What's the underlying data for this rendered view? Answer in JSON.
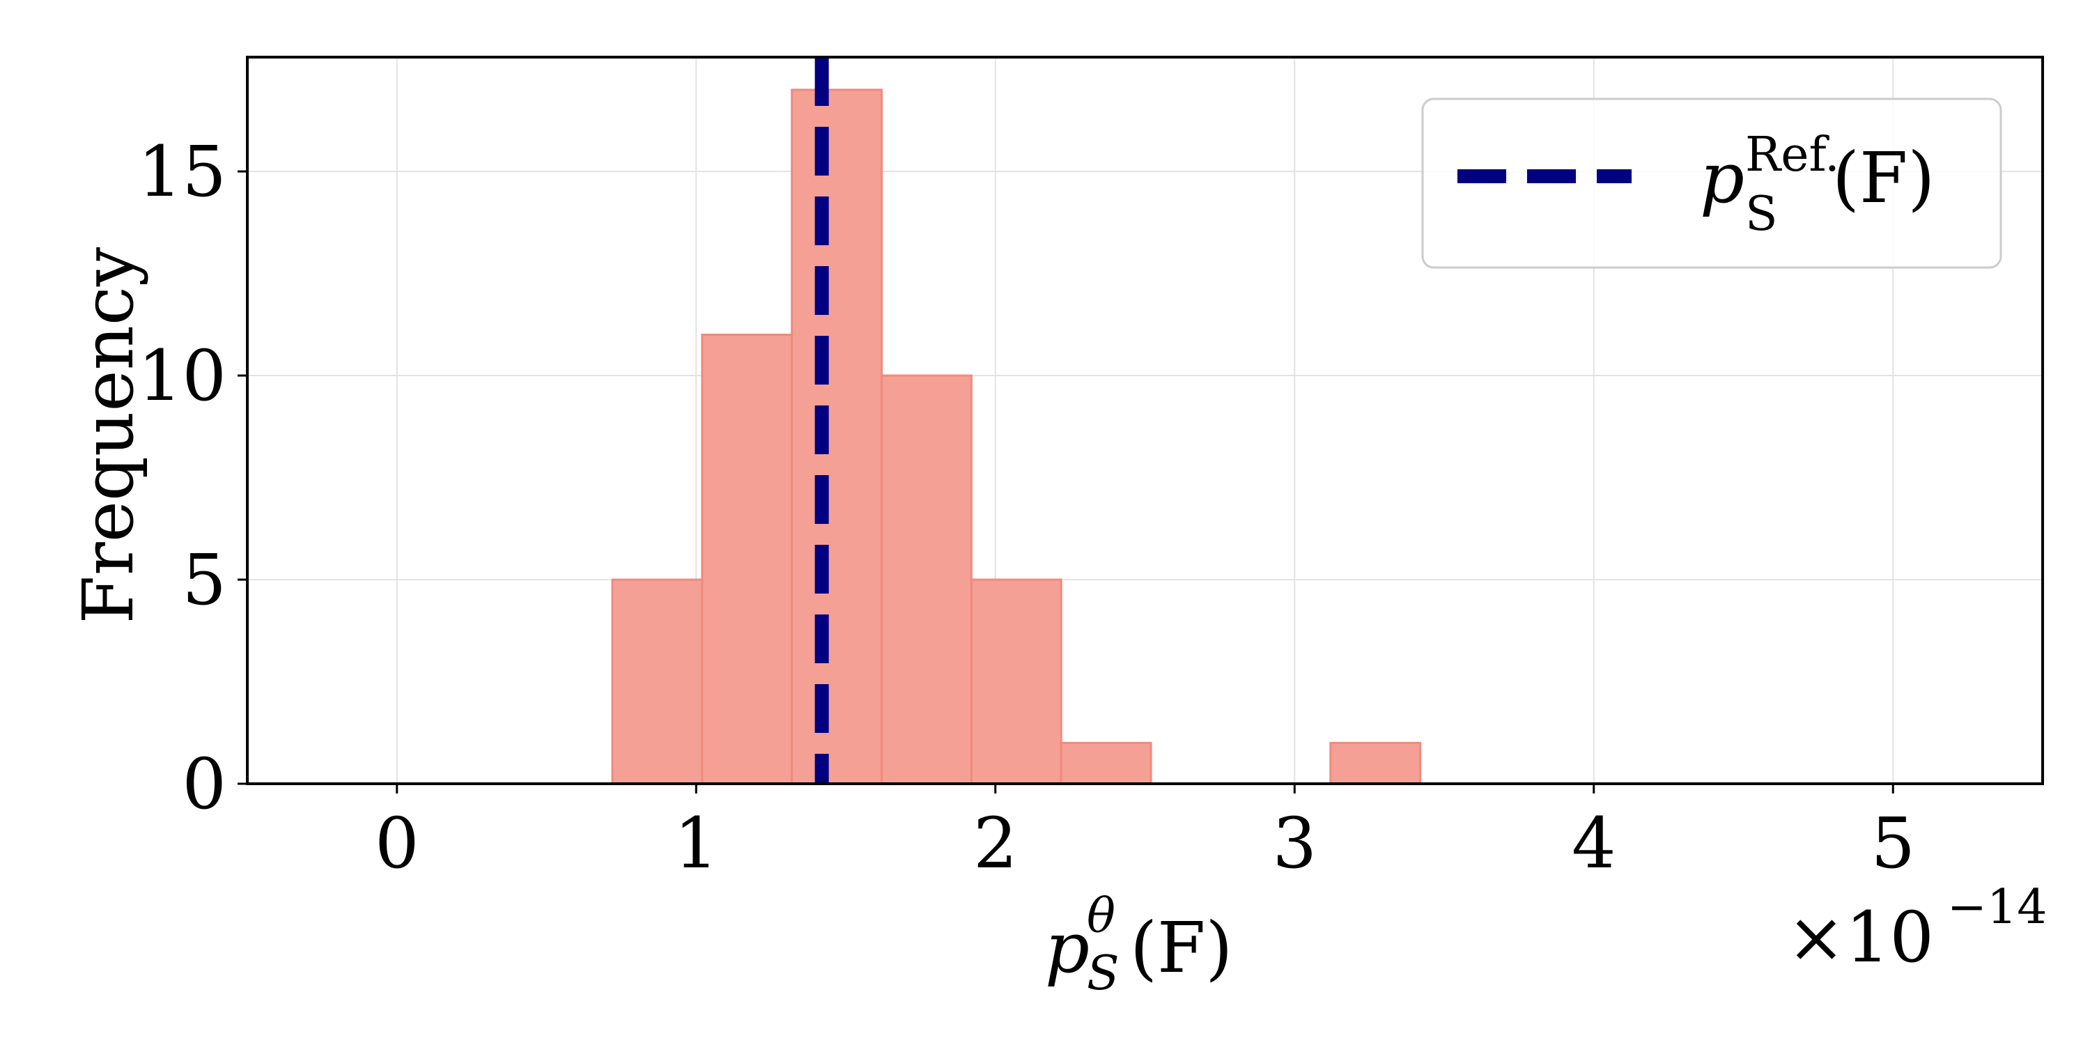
{
  "chart_data": {
    "type": "bar",
    "subtype": "histogram",
    "bin_edges": [
      0.72,
      1.02,
      1.32,
      1.62,
      1.92,
      2.22,
      2.52,
      2.82,
      3.12,
      3.42
    ],
    "counts": [
      5,
      11,
      17,
      10,
      5,
      1,
      0,
      0,
      1
    ],
    "bar_color": "#f4a094",
    "bar_edge_color": "#f08a7e",
    "reference_line": {
      "x": 1.42,
      "label_base": "p",
      "label_sup": "Ref.",
      "label_sub": "S",
      "label_tail": "(F)",
      "color": "#000080",
      "style": "dashed"
    },
    "xlim": [
      -0.5,
      5.5
    ],
    "ylim": [
      0,
      17.8
    ],
    "x_ticks": [
      0,
      1,
      2,
      3,
      4,
      5
    ],
    "y_ticks": [
      0,
      5,
      10,
      15
    ],
    "x_tick_labels": [
      "0",
      "1",
      "2",
      "3",
      "4",
      "5"
    ],
    "y_tick_labels": [
      "0",
      "5",
      "10",
      "15"
    ],
    "xlabel": {
      "base": "p",
      "sup": "θ",
      "sub": "S",
      "tail": "(F)"
    },
    "ylabel": "Frequency",
    "x_scale_factor": {
      "base": "×10",
      "exp": "−14"
    },
    "grid": true,
    "legend_position": "top-right"
  }
}
